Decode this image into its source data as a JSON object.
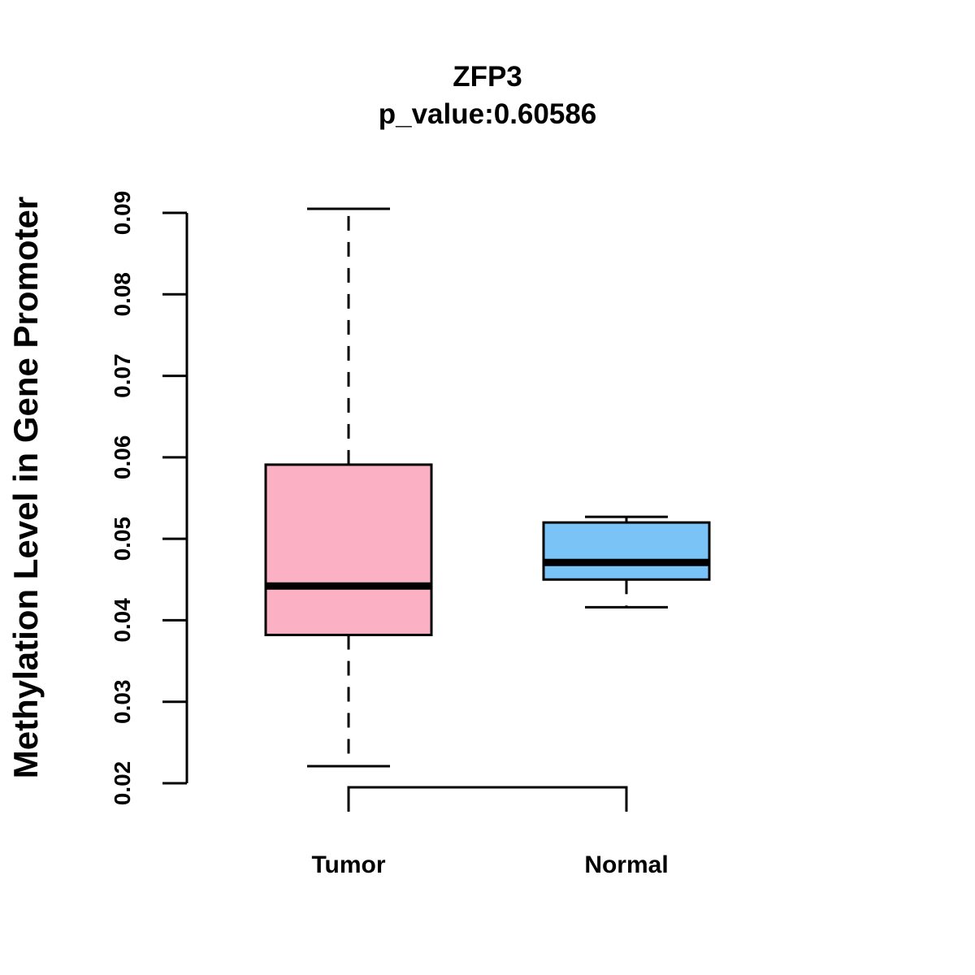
{
  "chart_data": {
    "type": "box",
    "title": "ZFP3",
    "subtitle": "p_value:0.60586",
    "xlabel": "",
    "ylabel": "Methylation Level in Gene Promoter",
    "ylim": [
      0.02,
      0.09
    ],
    "yticks": [
      "0.02",
      "0.03",
      "0.04",
      "0.05",
      "0.06",
      "0.07",
      "0.08",
      "0.09"
    ],
    "grid": false,
    "categories": [
      "Tumor",
      "Normal"
    ],
    "boxes": [
      {
        "category": "Tumor",
        "color": "#FBB1C3",
        "whisker_low": 0.0221,
        "q1": 0.0382,
        "median": 0.0442,
        "q3": 0.0591,
        "whisker_high": 0.0905
      },
      {
        "category": "Normal",
        "color": "#7AC3F7",
        "whisker_low": 0.0416,
        "q1": 0.045,
        "median": 0.0471,
        "q3": 0.052,
        "whisker_high": 0.0527
      }
    ],
    "bracket": {
      "between": [
        "Tumor",
        "Normal"
      ],
      "label": ""
    }
  }
}
